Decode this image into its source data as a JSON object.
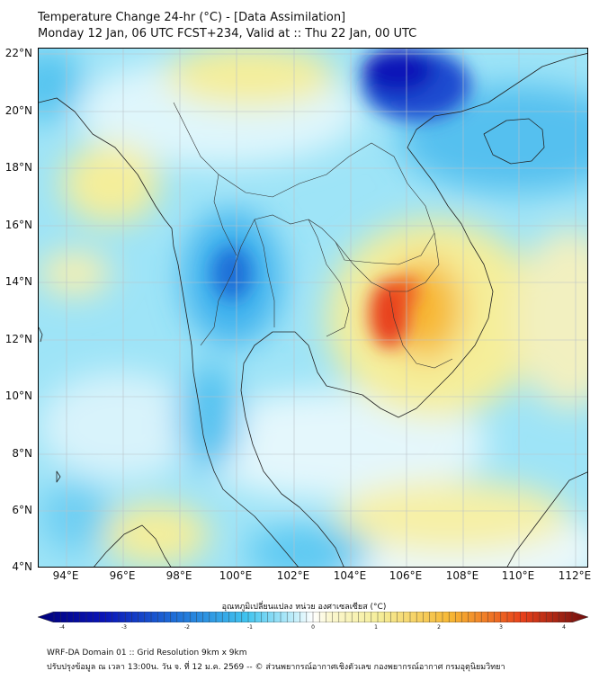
{
  "header": {
    "title_line1": "Temperature Change 24-hr (°C) - [Data Assimilation]",
    "title_line2": "Monday 12 Jan, 06 UTC FCST+234, Valid at :: Thu 22 Jan, 00 UTC"
  },
  "map": {
    "lat_labels": [
      "22°N",
      "20°N",
      "18°N",
      "16°N",
      "14°N",
      "12°N",
      "10°N",
      "8°N",
      "6°N",
      "4°N"
    ],
    "lon_labels": [
      "94°E",
      "96°E",
      "98°E",
      "100°E",
      "102°E",
      "104°E",
      "106°E",
      "108°E",
      "110°E",
      "112°E"
    ],
    "colors": {
      "strong_cold": "#0a14b8",
      "cold": "#2a8fe6",
      "cool": "#6fd8f5",
      "neutral": "#f2fbff",
      "warm": "#f5ee9a",
      "hot": "#f7b733",
      "very_hot": "#e8401a"
    }
  },
  "colorbar": {
    "label": "อุณหภูมิเปลี่ยนแปลง หน่วย องศาเซลเซียส (°C)",
    "tick_labels": [
      "-4",
      "-3",
      "-2",
      "-1",
      "0",
      "1",
      "2",
      "3",
      "4"
    ]
  },
  "footer": {
    "line1": "WRF-DA Domain 01 :: Grid Resolution 9km x 9km",
    "line2": "ปรับปรุงข้อมูล ณ เวลา 13:00น. วัน จ. ที่ 12 ม.ค. 2569 -- © ส่วนพยากรณ์อากาศเชิงตัวเลข กองพยากรณ์อากาศ กรมอุตุนิยมวิทยา"
  }
}
